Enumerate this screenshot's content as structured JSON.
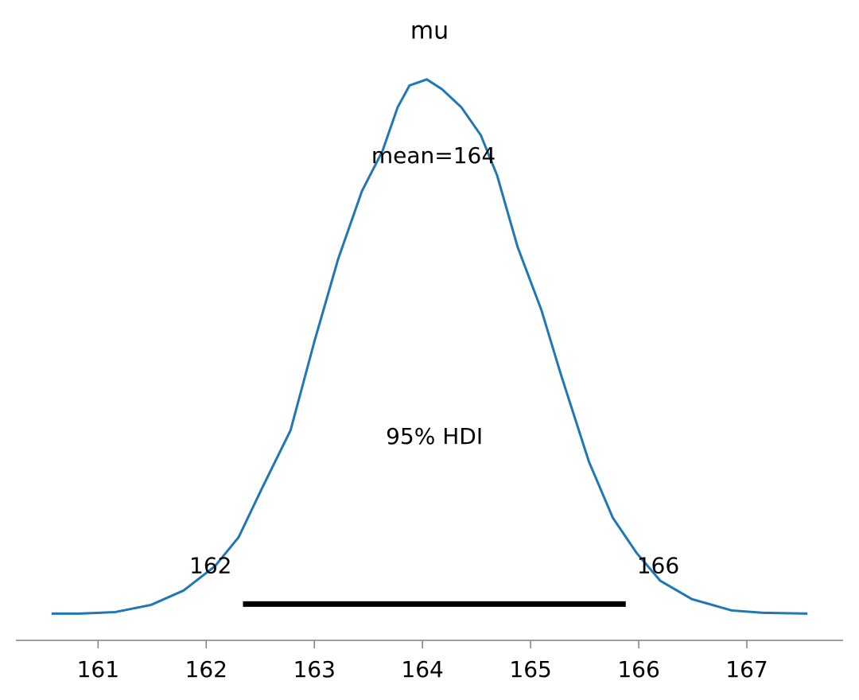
{
  "chart_data": {
    "type": "density",
    "title": "mu",
    "color": "#1f77b4",
    "x": [
      160.57,
      160.83,
      161.16,
      161.49,
      161.79,
      162.08,
      162.3,
      162.52,
      162.78,
      163.0,
      163.22,
      163.44,
      163.63,
      163.77,
      163.88,
      164.04,
      164.18,
      164.36,
      164.54,
      164.69,
      164.88,
      165.1,
      165.28,
      165.54,
      165.76,
      165.98,
      166.2,
      166.49,
      166.86,
      167.15,
      167.56
    ],
    "values": [
      0,
      0,
      0.0013,
      0.0072,
      0.019,
      0.039,
      0.063,
      0.104,
      0.151,
      0.224,
      0.292,
      0.348,
      0.381,
      0.417,
      0.435,
      0.44,
      0.432,
      0.417,
      0.394,
      0.361,
      0.302,
      0.25,
      0.197,
      0.125,
      0.079,
      0.05,
      0.027,
      0.012,
      0.0026,
      0.0007,
      0
    ],
    "xlim": [
      160.24,
      167.89
    ],
    "ylim": [
      -0.022,
      0.453
    ],
    "xticks": [
      161,
      162,
      163,
      164,
      165,
      166,
      167
    ],
    "mean": {
      "value": 164.03,
      "label": "mean=164"
    },
    "hdi": {
      "label": "95% HDI",
      "values": [
        162.34,
        165.88
      ],
      "value_labels": [
        "162",
        "166"
      ]
    }
  }
}
